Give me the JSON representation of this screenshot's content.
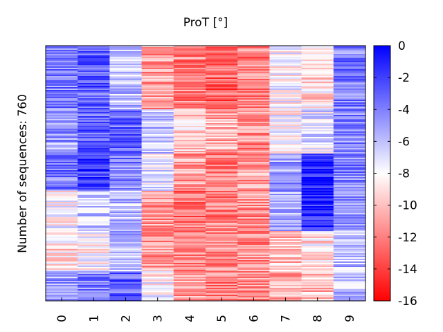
{
  "chart_data": {
    "type": "heatmap",
    "title": "ProT [°]",
    "ylabel": "Number of sequences: 760",
    "xlabel": "",
    "x_categories": [
      "0",
      "1",
      "2",
      "3",
      "4",
      "5",
      "6",
      "7",
      "8",
      "9"
    ],
    "n_sequences": 760,
    "colorbar": {
      "ticks": [
        "0",
        "-2",
        "-4",
        "-6",
        "-8",
        "-10",
        "-12",
        "-14",
        "-16"
      ],
      "range": [
        -16,
        0
      ],
      "colormap": [
        "#ff0000",
        "#ffffff",
        "#0000ff"
      ]
    },
    "row_groups": [
      {
        "rows": 190,
        "columns_mean": [
          -4,
          -3,
          -6,
          -11,
          -12,
          -13,
          -12,
          -8,
          -9,
          -4
        ]
      },
      {
        "rows": 130,
        "columns_mean": [
          -5,
          -3,
          -3,
          -6,
          -9.5,
          -10.5,
          -11.5,
          -8,
          -7,
          -4
        ]
      },
      {
        "rows": 110,
        "columns_mean": [
          -4,
          -2,
          -4,
          -7,
          -11,
          -12,
          -11,
          -5,
          -1,
          -4
        ]
      },
      {
        "rows": 120,
        "columns_mean": [
          -8,
          -6,
          -6,
          -11,
          -12.5,
          -12,
          -11.5,
          -6,
          -1,
          -4.5
        ]
      },
      {
        "rows": 120,
        "columns_mean": [
          -9,
          -8,
          -6,
          -11,
          -12,
          -11.5,
          -11.5,
          -10,
          -9,
          -6
        ]
      },
      {
        "rows": 90,
        "columns_mean": [
          -5,
          -4,
          -3,
          -8,
          -11,
          -12,
          -11.5,
          -10.5,
          -10,
          -6
        ]
      }
    ]
  }
}
